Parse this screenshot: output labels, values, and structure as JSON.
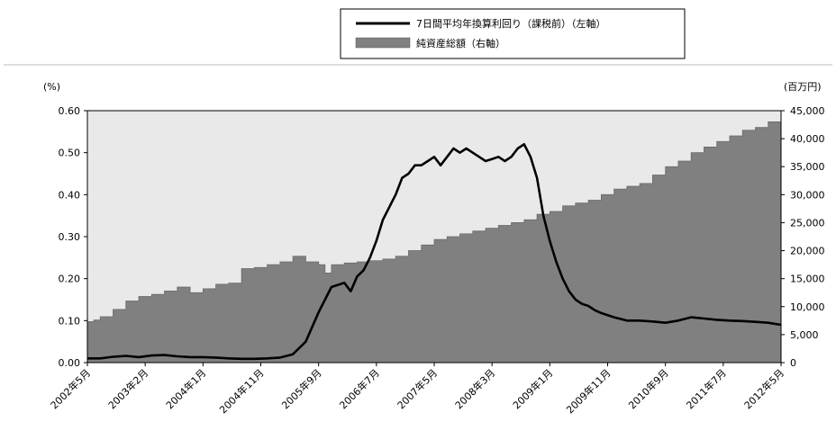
{
  "chart_data": {
    "type": "line+area",
    "left_unit": "(%)",
    "right_unit": "(百万円)",
    "legend": [
      {
        "label": "7日間平均年換算利回り（課税前）（左軸）",
        "kind": "line",
        "color": "#000000"
      },
      {
        "label": "純資産総額（右軸）",
        "kind": "area",
        "color": "#808080"
      }
    ],
    "x_labels": [
      "2002年5月",
      "2003年2月",
      "2004年1月",
      "2004年11月",
      "2005年9月",
      "2006年7月",
      "2007年5月",
      "2008年3月",
      "2009年1月",
      "2009年11月",
      "2010年9月",
      "2011年7月",
      "2012年5月"
    ],
    "left_axis": {
      "min": 0,
      "max": 0.6,
      "ticks": [
        "0.00",
        "0.10",
        "0.20",
        "0.30",
        "0.40",
        "0.50",
        "0.60"
      ]
    },
    "right_axis": {
      "min": 0,
      "max": 45000,
      "ticks": [
        "0",
        "5,000",
        "10,000",
        "15,000",
        "20,000",
        "25,000",
        "30,000",
        "35,000",
        "40,000",
        "45,000"
      ]
    },
    "series_yield": [
      [
        0,
        0.01
      ],
      [
        1,
        0.01
      ],
      [
        2,
        0.014
      ],
      [
        3,
        0.016
      ],
      [
        4,
        0.013
      ],
      [
        5,
        0.017
      ],
      [
        6,
        0.018
      ],
      [
        7,
        0.015
      ],
      [
        8,
        0.013
      ],
      [
        9,
        0.013
      ],
      [
        10,
        0.012
      ],
      [
        11,
        0.01
      ],
      [
        12,
        0.009
      ],
      [
        13,
        0.009
      ],
      [
        14,
        0.01
      ],
      [
        15,
        0.012
      ],
      [
        16,
        0.02
      ],
      [
        17,
        0.05
      ],
      [
        18,
        0.12
      ],
      [
        19,
        0.18
      ],
      [
        20,
        0.19
      ],
      [
        20.5,
        0.17
      ],
      [
        21,
        0.205
      ],
      [
        21.5,
        0.22
      ],
      [
        22,
        0.25
      ],
      [
        22.5,
        0.29
      ],
      [
        23,
        0.34
      ],
      [
        23.5,
        0.37
      ],
      [
        24,
        0.4
      ],
      [
        24.5,
        0.44
      ],
      [
        25,
        0.45
      ],
      [
        25.5,
        0.47
      ],
      [
        26,
        0.47
      ],
      [
        26.5,
        0.48
      ],
      [
        27,
        0.49
      ],
      [
        27.5,
        0.47
      ],
      [
        28,
        0.49
      ],
      [
        28.5,
        0.51
      ],
      [
        29,
        0.5
      ],
      [
        29.5,
        0.51
      ],
      [
        30,
        0.5
      ],
      [
        30.5,
        0.49
      ],
      [
        31,
        0.48
      ],
      [
        31.5,
        0.485
      ],
      [
        32,
        0.49
      ],
      [
        32.5,
        0.48
      ],
      [
        33,
        0.49
      ],
      [
        33.5,
        0.51
      ],
      [
        34,
        0.52
      ],
      [
        34.5,
        0.49
      ],
      [
        35,
        0.44
      ],
      [
        35.5,
        0.35
      ],
      [
        36,
        0.29
      ],
      [
        36.5,
        0.24
      ],
      [
        37,
        0.2
      ],
      [
        37.5,
        0.17
      ],
      [
        38,
        0.15
      ],
      [
        38.5,
        0.14
      ],
      [
        39,
        0.135
      ],
      [
        39.5,
        0.125
      ],
      [
        40,
        0.118
      ],
      [
        41,
        0.108
      ],
      [
        42,
        0.1
      ],
      [
        43,
        0.1
      ],
      [
        44,
        0.098
      ],
      [
        45,
        0.095
      ],
      [
        46,
        0.1
      ],
      [
        47,
        0.108
      ],
      [
        48,
        0.105
      ],
      [
        49,
        0.102
      ],
      [
        50,
        0.1
      ],
      [
        51,
        0.099
      ],
      [
        52,
        0.097
      ],
      [
        53,
        0.095
      ],
      [
        54,
        0.09
      ]
    ],
    "series_assets": [
      [
        0,
        7300
      ],
      [
        0.5,
        7600
      ],
      [
        1,
        8200
      ],
      [
        2,
        9500
      ],
      [
        3,
        11000
      ],
      [
        4,
        11800
      ],
      [
        5,
        12200
      ],
      [
        6,
        12800
      ],
      [
        7,
        13500
      ],
      [
        8,
        12500
      ],
      [
        9,
        13200
      ],
      [
        10,
        14000
      ],
      [
        11,
        14200
      ],
      [
        12,
        16800
      ],
      [
        13,
        17000
      ],
      [
        14,
        17500
      ],
      [
        15,
        18000
      ],
      [
        16,
        19000
      ],
      [
        17,
        18000
      ],
      [
        18,
        17500
      ],
      [
        18.5,
        16000
      ],
      [
        19,
        17500
      ],
      [
        20,
        17800
      ],
      [
        21,
        18000
      ],
      [
        22,
        18200
      ],
      [
        23,
        18500
      ],
      [
        24,
        19000
      ],
      [
        25,
        20000
      ],
      [
        26,
        21000
      ],
      [
        27,
        22000
      ],
      [
        28,
        22500
      ],
      [
        29,
        23000
      ],
      [
        30,
        23500
      ],
      [
        31,
        24000
      ],
      [
        32,
        24500
      ],
      [
        33,
        25000
      ],
      [
        34,
        25500
      ],
      [
        35,
        26500
      ],
      [
        36,
        27000
      ],
      [
        37,
        28000
      ],
      [
        38,
        28500
      ],
      [
        39,
        29000
      ],
      [
        40,
        30000
      ],
      [
        41,
        31000
      ],
      [
        42,
        31500
      ],
      [
        43,
        32000
      ],
      [
        44,
        33500
      ],
      [
        45,
        35000
      ],
      [
        46,
        36000
      ],
      [
        47,
        37500
      ],
      [
        48,
        38500
      ],
      [
        49,
        39500
      ],
      [
        50,
        40500
      ],
      [
        51,
        41500
      ],
      [
        52,
        42000
      ],
      [
        53,
        43000
      ],
      [
        54,
        43500
      ]
    ]
  }
}
